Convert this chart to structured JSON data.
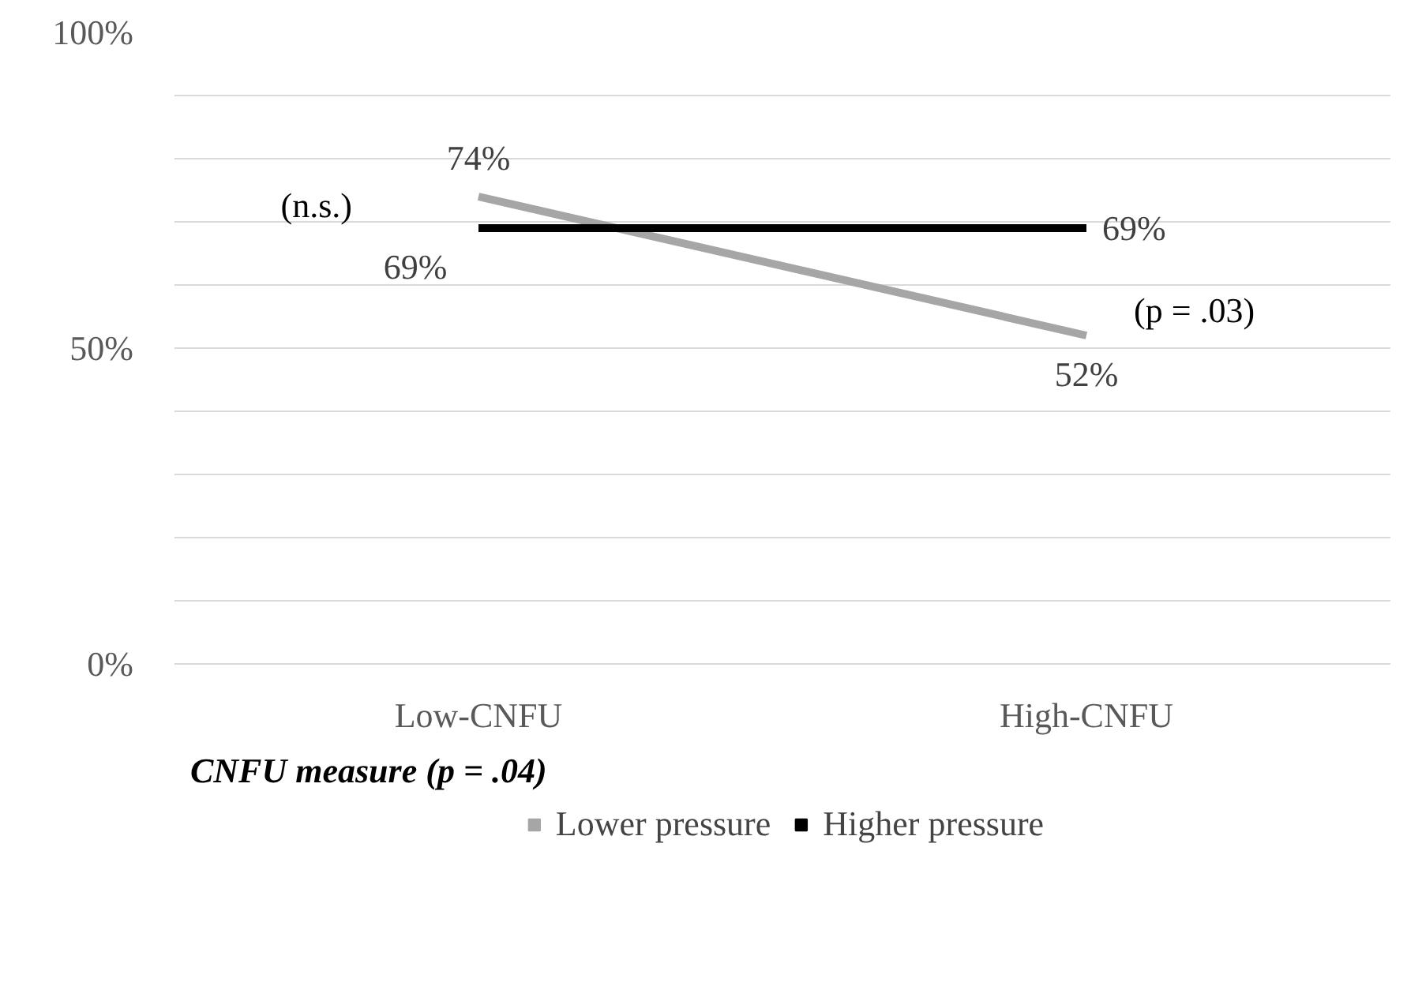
{
  "chart_data": {
    "type": "line",
    "categories": [
      "Low-CNFU",
      "High-CNFU"
    ],
    "series": [
      {
        "name": "Lower pressure",
        "color": "#a6a6a6",
        "values": [
          74,
          52
        ],
        "value_labels": [
          "74%",
          "52%"
        ]
      },
      {
        "name": "Higher pressure",
        "color": "#000000",
        "values": [
          69,
          69
        ],
        "value_labels": [
          "69%",
          "69%"
        ]
      }
    ],
    "ylim": [
      0,
      100
    ],
    "yticks": [
      {
        "value": 0,
        "label": "0%"
      },
      {
        "value": 10,
        "label": null
      },
      {
        "value": 20,
        "label": null
      },
      {
        "value": 30,
        "label": null
      },
      {
        "value": 40,
        "label": null
      },
      {
        "value": 50,
        "label": "50%"
      },
      {
        "value": 60,
        "label": null
      },
      {
        "value": 70,
        "label": null
      },
      {
        "value": 80,
        "label": null
      },
      {
        "value": 90,
        "label": null
      },
      {
        "value": 100,
        "label": "100%"
      }
    ],
    "grid": "y",
    "legend": "bottom",
    "marker": "none",
    "line_style": "solid",
    "annotations": [
      "(n.s.)",
      "(p = .03)",
      "CNFU measure (p = .04)"
    ]
  }
}
